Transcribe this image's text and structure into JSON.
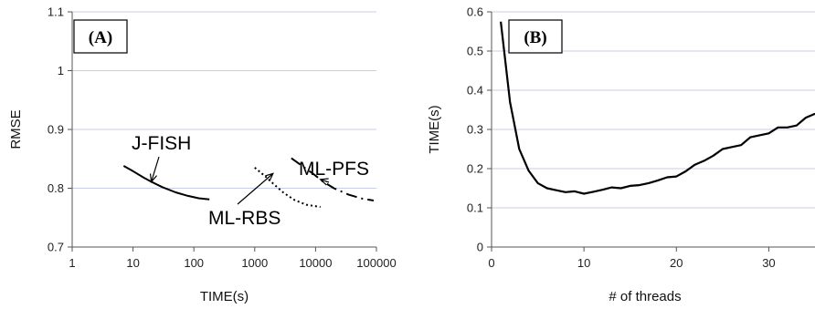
{
  "chart_data": [
    {
      "type": "line",
      "panel_label": "(A)",
      "xlabel": "TIME(s)",
      "ylabel": "RMSE",
      "xscale": "log",
      "xlim": [
        1,
        100000
      ],
      "ylim": [
        0.7,
        1.1
      ],
      "xticks": [
        "1",
        "10",
        "100",
        "1000",
        "10000",
        "100000"
      ],
      "yticks": [
        "0.7",
        "0.8",
        "0.9",
        "1",
        "1.1"
      ],
      "grid": "horizontal",
      "series": [
        {
          "name": "J-FISH",
          "style": "solid",
          "x": [
            7,
            10,
            15,
            20,
            30,
            50,
            80,
            120,
            180
          ],
          "y": [
            0.838,
            0.829,
            0.818,
            0.811,
            0.802,
            0.793,
            0.787,
            0.783,
            0.781
          ]
        },
        {
          "name": "ML-RBS",
          "style": "dotted",
          "x": [
            1000,
            1500,
            2000,
            3000,
            4500,
            7000,
            12000
          ],
          "y": [
            0.835,
            0.82,
            0.808,
            0.792,
            0.78,
            0.772,
            0.768
          ]
        },
        {
          "name": "ML-PFS",
          "style": "dashdot",
          "x": [
            4000,
            6000,
            9000,
            13000,
            20000,
            35000,
            60000,
            90000
          ],
          "y": [
            0.851,
            0.838,
            0.825,
            0.812,
            0.8,
            0.789,
            0.782,
            0.779
          ]
        }
      ],
      "annotations": [
        {
          "text": "J-FISH",
          "arrow_to": [
            20,
            0.811
          ]
        },
        {
          "text": "ML-RBS",
          "arrow_to": [
            2000,
            0.825
          ]
        },
        {
          "text": "ML-PFS",
          "arrow_to": [
            12000,
            0.815
          ]
        }
      ]
    },
    {
      "type": "line",
      "panel_label": "(B)",
      "xlabel": "# of threads",
      "ylabel": "TIME(s)",
      "xlim": [
        0,
        35
      ],
      "ylim": [
        0,
        0.6
      ],
      "xticks": [
        "0",
        "10",
        "20",
        "30"
      ],
      "yticks": [
        "0",
        "0.1",
        "0.2",
        "0.3",
        "0.4",
        "0.5",
        "0.6"
      ],
      "grid": "horizontal",
      "series": [
        {
          "style": "solid",
          "x": [
            1,
            2,
            3,
            4,
            5,
            6,
            7,
            8,
            9,
            10,
            11,
            12,
            13,
            14,
            15,
            16,
            17,
            18,
            19,
            20,
            21,
            22,
            23,
            24,
            25,
            26,
            27,
            28,
            29,
            30,
            31,
            32,
            33,
            34,
            35
          ],
          "y": [
            0.575,
            0.37,
            0.25,
            0.195,
            0.163,
            0.15,
            0.145,
            0.14,
            0.142,
            0.136,
            0.141,
            0.146,
            0.152,
            0.15,
            0.156,
            0.158,
            0.163,
            0.17,
            0.178,
            0.18,
            0.193,
            0.21,
            0.22,
            0.233,
            0.25,
            0.255,
            0.26,
            0.28,
            0.285,
            0.29,
            0.305,
            0.305,
            0.31,
            0.33,
            0.34
          ]
        }
      ]
    }
  ]
}
